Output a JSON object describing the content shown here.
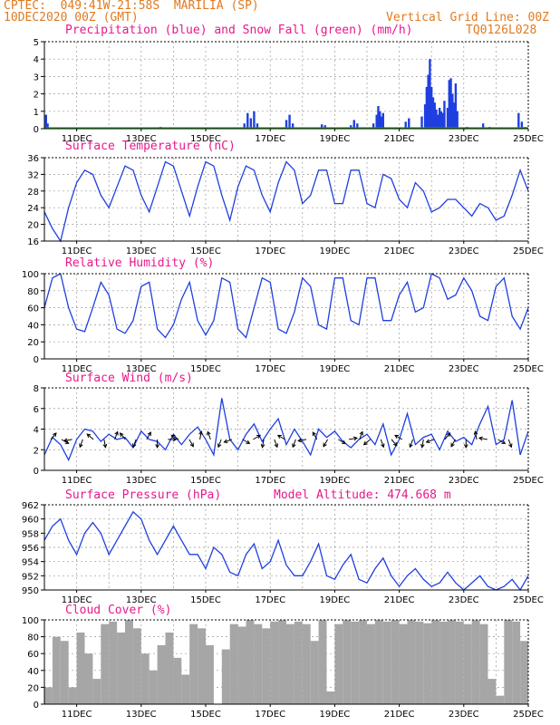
{
  "header": {
    "station": "CPTEC:  049:41W-21:58S  MARILIA (SP)",
    "run": "10DEC2020 00Z (GMT)",
    "grid_note": "Vertical Grid Line: 00Z",
    "code": "TQ0126L028"
  },
  "model_altitude": "Model Altitude: 474.668 m",
  "colors": {
    "header": "#e07a1f",
    "title": "#e8188c",
    "line": "#1f3fe0",
    "snow": "#1aa61a",
    "cloud": "#a6a6a6",
    "arrow": "#000000"
  },
  "x_axis": {
    "labels": [
      "11DEC",
      "13DEC",
      "15DEC",
      "17DEC",
      "19DEC",
      "21DEC",
      "23DEC",
      "25DEC"
    ],
    "label_days": [
      1,
      3,
      5,
      7,
      9,
      11,
      13,
      15
    ],
    "range_days": [
      0,
      15
    ]
  },
  "chart_data": [
    {
      "id": "precip",
      "type": "bar",
      "title": "Precipitation (blue) and Snow Fall (green) (mm/h)",
      "ylim": [
        0,
        5
      ],
      "yticks": [
        0,
        1,
        2,
        3,
        4,
        5
      ],
      "series": [
        {
          "name": "Precipitation",
          "color": "#1f3fe0",
          "points": [
            [
              0.05,
              0.8
            ],
            [
              0.1,
              0.3
            ],
            [
              3.6,
              0.1
            ],
            [
              4.9,
              0.05
            ],
            [
              6.2,
              0.3
            ],
            [
              6.3,
              0.9
            ],
            [
              6.4,
              0.6
            ],
            [
              6.5,
              1.0
            ],
            [
              6.6,
              0.3
            ],
            [
              7.5,
              0.5
            ],
            [
              7.6,
              0.8
            ],
            [
              7.7,
              0.3
            ],
            [
              8.6,
              0.25
            ],
            [
              8.7,
              0.2
            ],
            [
              9.5,
              0.2
            ],
            [
              9.6,
              0.5
            ],
            [
              9.7,
              0.3
            ],
            [
              10.2,
              0.3
            ],
            [
              10.3,
              0.8
            ],
            [
              10.35,
              1.3
            ],
            [
              10.4,
              1.0
            ],
            [
              10.45,
              0.7
            ],
            [
              10.5,
              0.9
            ],
            [
              11.2,
              0.4
            ],
            [
              11.3,
              0.6
            ],
            [
              11.7,
              0.7
            ],
            [
              11.8,
              1.4
            ],
            [
              11.85,
              2.4
            ],
            [
              11.9,
              3.1
            ],
            [
              11.95,
              4.0
            ],
            [
              12.0,
              2.4
            ],
            [
              12.05,
              1.8
            ],
            [
              12.1,
              1.5
            ],
            [
              12.15,
              1.1
            ],
            [
              12.2,
              0.8
            ],
            [
              12.25,
              1.2
            ],
            [
              12.3,
              1.0
            ],
            [
              12.35,
              0.9
            ],
            [
              12.4,
              1.6
            ],
            [
              12.5,
              1.2
            ],
            [
              12.55,
              2.8
            ],
            [
              12.6,
              2.9
            ],
            [
              12.65,
              2.0
            ],
            [
              12.7,
              1.5
            ],
            [
              12.75,
              2.6
            ],
            [
              12.8,
              1.0
            ],
            [
              13.1,
              0.1
            ],
            [
              13.6,
              0.3
            ],
            [
              13.8,
              0.1
            ],
            [
              14.7,
              0.9
            ],
            [
              14.8,
              0.4
            ],
            [
              14.9,
              0.1
            ]
          ]
        },
        {
          "name": "Snow Fall",
          "color": "#1aa61a",
          "points": []
        }
      ]
    },
    {
      "id": "temp",
      "type": "line",
      "title": "Surface Temperature (nC)",
      "ylim": [
        16,
        36
      ],
      "yticks": [
        16,
        20,
        24,
        28,
        32,
        36
      ],
      "x": [
        0,
        0.25,
        0.5,
        0.75,
        1,
        1.25,
        1.5,
        1.75,
        2,
        2.25,
        2.5,
        2.75,
        3,
        3.25,
        3.5,
        3.75,
        4,
        4.25,
        4.5,
        4.75,
        5,
        5.25,
        5.5,
        5.75,
        6,
        6.25,
        6.5,
        6.75,
        7,
        7.25,
        7.5,
        7.75,
        8,
        8.25,
        8.5,
        8.75,
        9,
        9.25,
        9.5,
        9.75,
        10,
        10.25,
        10.5,
        10.75,
        11,
        11.25,
        11.5,
        11.75,
        12,
        12.25,
        12.5,
        12.75,
        13,
        13.25,
        13.5,
        13.75,
        14,
        14.25,
        14.5,
        14.75,
        15
      ],
      "series": [
        {
          "name": "",
          "color": "#1f3fe0",
          "values": [
            23,
            19,
            16,
            24,
            30,
            33,
            32,
            27,
            24,
            29,
            34,
            33,
            27,
            23,
            29,
            35,
            34,
            28,
            22,
            29,
            35,
            34,
            27,
            21,
            29,
            34,
            33,
            27,
            23,
            30,
            35,
            33,
            25,
            27,
            33,
            33,
            25,
            25,
            33,
            33,
            25,
            24,
            32,
            31,
            26,
            24,
            30,
            28,
            23,
            24,
            26,
            26,
            24,
            22,
            25,
            24,
            21,
            22,
            27,
            33,
            28
          ]
        }
      ]
    },
    {
      "id": "humidity",
      "type": "line",
      "title": "Relative Humidity (%)",
      "ylim": [
        0,
        100
      ],
      "yticks": [
        0,
        20,
        40,
        60,
        80,
        100
      ],
      "x": [
        0,
        0.25,
        0.5,
        0.75,
        1,
        1.25,
        1.5,
        1.75,
        2,
        2.25,
        2.5,
        2.75,
        3,
        3.25,
        3.5,
        3.75,
        4,
        4.25,
        4.5,
        4.75,
        5,
        5.25,
        5.5,
        5.75,
        6,
        6.25,
        6.5,
        6.75,
        7,
        7.25,
        7.5,
        7.75,
        8,
        8.25,
        8.5,
        8.75,
        9,
        9.25,
        9.5,
        9.75,
        10,
        10.25,
        10.5,
        10.75,
        11,
        11.25,
        11.5,
        11.75,
        12,
        12.25,
        12.5,
        12.75,
        13,
        13.25,
        13.5,
        13.75,
        14,
        14.25,
        14.5,
        14.75,
        15
      ],
      "series": [
        {
          "name": "",
          "color": "#1f3fe0",
          "values": [
            60,
            95,
            100,
            60,
            35,
            32,
            60,
            90,
            75,
            35,
            30,
            45,
            85,
            90,
            35,
            25,
            40,
            70,
            90,
            45,
            28,
            45,
            95,
            90,
            35,
            25,
            60,
            95,
            90,
            35,
            30,
            55,
            95,
            85,
            40,
            35,
            95,
            95,
            45,
            40,
            95,
            95,
            45,
            45,
            75,
            90,
            55,
            60,
            100,
            95,
            70,
            75,
            95,
            80,
            50,
            45,
            85,
            95,
            50,
            35,
            60
          ]
        }
      ]
    },
    {
      "id": "wind",
      "type": "line",
      "title": "Surface Wind (m/s)",
      "ylim": [
        0,
        8
      ],
      "yticks": [
        0,
        2,
        4,
        6,
        8
      ],
      "x": [
        0,
        0.25,
        0.5,
        0.75,
        1,
        1.25,
        1.5,
        1.75,
        2,
        2.25,
        2.5,
        2.75,
        3,
        3.25,
        3.5,
        3.75,
        4,
        4.25,
        4.5,
        4.75,
        5,
        5.25,
        5.5,
        5.75,
        6,
        6.25,
        6.5,
        6.75,
        7,
        7.25,
        7.5,
        7.75,
        8,
        8.25,
        8.5,
        8.75,
        9,
        9.25,
        9.5,
        9.75,
        10,
        10.25,
        10.5,
        10.75,
        11,
        11.25,
        11.5,
        11.75,
        12,
        12.25,
        12.5,
        12.75,
        13,
        13.25,
        13.5,
        13.75,
        14,
        14.25,
        14.5,
        14.75,
        15
      ],
      "series": [
        {
          "name": "",
          "color": "#1f3fe0",
          "values": [
            1.5,
            3.2,
            2.5,
            1.0,
            3.0,
            4.0,
            3.8,
            2.8,
            3.5,
            3.0,
            3.2,
            2.2,
            3.8,
            3.0,
            2.8,
            2.0,
            3.5,
            2.5,
            3.5,
            4.2,
            3.0,
            1.5,
            7.0,
            3.0,
            2.0,
            3.5,
            4.5,
            2.8,
            4.0,
            5.0,
            2.5,
            4.0,
            2.8,
            1.5,
            4.0,
            3.2,
            3.8,
            2.8,
            2.2,
            3.0,
            3.5,
            2.5,
            4.5,
            1.5,
            3.0,
            5.5,
            2.5,
            3.2,
            3.5,
            2.0,
            3.8,
            2.8,
            3.2,
            2.5,
            4.5,
            6.2,
            2.5,
            3.0,
            6.8,
            1.5,
            3.8
          ]
        }
      ]
    },
    {
      "id": "pressure",
      "type": "line",
      "title": "Surface Pressure (hPa)",
      "ylim": [
        950,
        962
      ],
      "yticks": [
        950,
        952,
        954,
        956,
        958,
        960,
        962
      ],
      "x": [
        0,
        0.25,
        0.5,
        0.75,
        1,
        1.25,
        1.5,
        1.75,
        2,
        2.25,
        2.5,
        2.75,
        3,
        3.25,
        3.5,
        3.75,
        4,
        4.25,
        4.5,
        4.75,
        5,
        5.25,
        5.5,
        5.75,
        6,
        6.25,
        6.5,
        6.75,
        7,
        7.25,
        7.5,
        7.75,
        8,
        8.25,
        8.5,
        8.75,
        9,
        9.25,
        9.5,
        9.75,
        10,
        10.25,
        10.5,
        10.75,
        11,
        11.25,
        11.5,
        11.75,
        12,
        12.25,
        12.5,
        12.75,
        13,
        13.25,
        13.5,
        13.75,
        14,
        14.25,
        14.5,
        14.75,
        15
      ],
      "series": [
        {
          "name": "",
          "color": "#1f3fe0",
          "values": [
            957,
            959,
            960,
            957,
            955,
            958,
            959.5,
            958,
            955,
            957,
            959,
            961,
            960,
            957,
            955,
            957,
            959,
            957,
            955,
            955,
            953,
            956,
            955,
            952.5,
            952,
            955,
            956.5,
            953,
            954,
            957,
            953.5,
            952,
            952,
            954,
            956.5,
            952,
            951.5,
            953.5,
            955,
            951.5,
            951,
            953,
            954.5,
            952,
            950.5,
            952,
            953,
            951.5,
            950.5,
            951,
            952.5,
            951,
            950,
            951,
            952,
            950.5,
            949.5,
            950.5,
            951.5,
            950,
            952
          ]
        }
      ]
    },
    {
      "id": "cloud",
      "type": "area",
      "title": "Cloud Cover (%)",
      "ylim": [
        0,
        100
      ],
      "yticks": [
        0,
        20,
        40,
        60,
        80,
        100
      ],
      "x": [
        0,
        0.25,
        0.5,
        0.75,
        1,
        1.25,
        1.5,
        1.75,
        2,
        2.25,
        2.5,
        2.75,
        3,
        3.25,
        3.5,
        3.75,
        4,
        4.25,
        4.5,
        4.75,
        5,
        5.25,
        5.5,
        5.75,
        6,
        6.25,
        6.5,
        6.75,
        7,
        7.25,
        7.5,
        7.75,
        8,
        8.25,
        8.5,
        8.75,
        9,
        9.25,
        9.5,
        9.75,
        10,
        10.25,
        10.5,
        10.75,
        11,
        11.25,
        11.5,
        11.75,
        12,
        12.25,
        12.5,
        12.75,
        13,
        13.25,
        13.5,
        13.75,
        14,
        14.25,
        14.5,
        14.75,
        15
      ],
      "series": [
        {
          "name": "",
          "color": "#a6a6a6",
          "values": [
            20,
            80,
            75,
            20,
            85,
            60,
            30,
            95,
            98,
            85,
            100,
            90,
            60,
            40,
            70,
            85,
            55,
            35,
            95,
            90,
            70,
            0,
            65,
            95,
            92,
            100,
            95,
            90,
            98,
            100,
            95,
            98,
            95,
            75,
            100,
            15,
            95,
            100,
            98,
            100,
            95,
            100,
            98,
            100,
            95,
            100,
            98,
            96,
            100,
            98,
            100,
            98,
            95,
            100,
            95,
            30,
            10,
            100,
            98,
            75,
            60
          ]
        }
      ]
    }
  ]
}
